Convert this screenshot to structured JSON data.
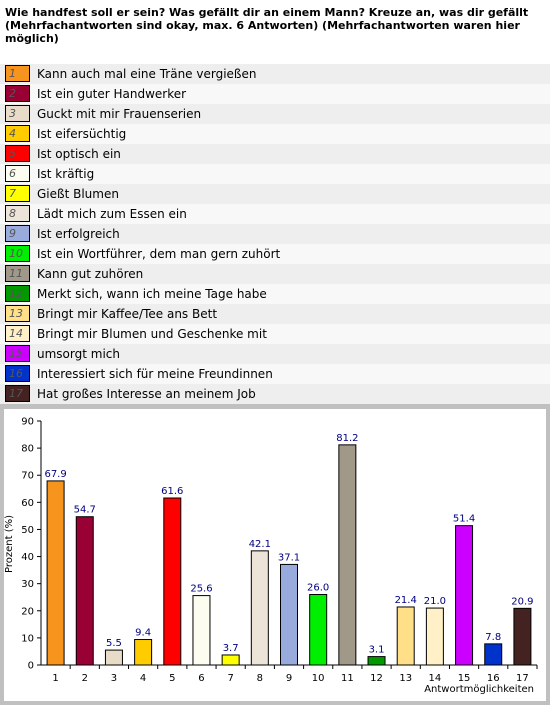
{
  "chart_data": {
    "type": "bar",
    "title": "Wie handfest soll er sein? Was gefällt dir an einem Mann? Kreuze an, was dir gefällt (Mehrfachantworten sind okay, max. 6 Antworten) (Mehrfachantworten waren hier möglich)",
    "categories": [
      "1",
      "2",
      "3",
      "4",
      "5",
      "6",
      "7",
      "8",
      "9",
      "10",
      "11",
      "12",
      "13",
      "14",
      "15",
      "16",
      "17"
    ],
    "answers": [
      "Kann auch mal eine Träne vergießen",
      "Ist ein guter Handwerker",
      "Guckt mit mir Frauenserien",
      "Ist eifersüchtig",
      "Ist optisch ein",
      "Ist kräftig",
      "Gießt Blumen",
      "Lädt mich zum Essen ein",
      "Ist erfolgreich",
      "Ist ein Wortführer, dem man gern zuhört",
      "Kann gut zuhören",
      "Merkt sich, wann ich meine Tage habe",
      "Bringt mir Kaffee/Tee ans Bett",
      "Bringt mir Blumen und Geschenke mit",
      "umsorgt mich",
      "Interessiert sich für meine Freundinnen",
      "Hat großes Interesse an meinem Job"
    ],
    "values": [
      67.9,
      54.7,
      5.5,
      9.4,
      61.6,
      25.6,
      3.7,
      42.1,
      37.1,
      26.0,
      81.2,
      3.1,
      21.4,
      21.0,
      51.4,
      7.8,
      20.9
    ],
    "value_labels": [
      "67.9",
      "54.7",
      "5.5",
      "9.4",
      "61.6",
      "25.6",
      "3.7",
      "42.1",
      "37.1",
      "26.0",
      "81.2",
      "3.1",
      "21.4",
      "21.0",
      "51.4",
      "7.8",
      "20.9"
    ],
    "colors": [
      "#f7941d",
      "#990033",
      "#e8dcc8",
      "#ffcc00",
      "#ff0000",
      "#fcfcf0",
      "#ffff00",
      "#ece4d8",
      "#99aadd",
      "#00ee00",
      "#a09888",
      "#009900",
      "#ffe088",
      "#fff0c8",
      "#cc00ff",
      "#0033cc",
      "#442222"
    ],
    "y_label": "Prozent (%)",
    "x_label": "Antwortmöglichkeiten",
    "ylim": [
      0,
      90
    ],
    "yticks": [
      0,
      10,
      20,
      30,
      40,
      50,
      60,
      70,
      80,
      90
    ]
  }
}
